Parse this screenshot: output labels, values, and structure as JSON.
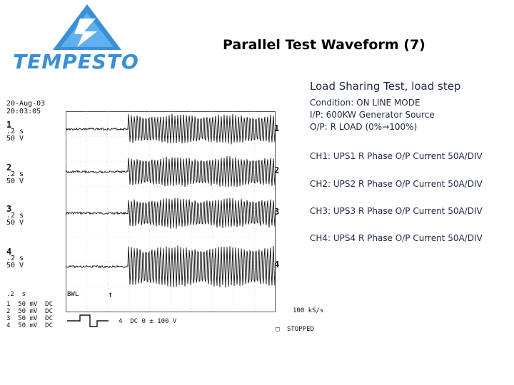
{
  "logo": {
    "text": "TEMPESTO"
  },
  "title": "Parallel Test Waveform (7)",
  "scope": {
    "date": "20-Aug-03",
    "time": "20:03:05",
    "channels": [
      {
        "num": "1",
        "time_div": ".2 s",
        "volt_div": "50 V",
        "marker": "1"
      },
      {
        "num": "2",
        "time_div": ".2 s",
        "volt_div": "50 V",
        "marker": "2"
      },
      {
        "num": "3",
        "time_div": ".2 s",
        "volt_div": "50 V",
        "marker": "3"
      },
      {
        "num": "4",
        "time_div": ".2 s",
        "volt_div": "50 V",
        "marker": "4"
      }
    ],
    "timebase": ".2  s",
    "bwl": "BWL",
    "channel_settings": [
      "1  50 mV  DC",
      "2  50 mV  DC",
      "3  50 mV  DC",
      "4  50 mV  DC"
    ],
    "trigger": "4  DC 0 ± 100 V",
    "sample_rate": "100 kS/s",
    "status": "STOPPED",
    "trigger_arrow": "↑"
  },
  "notes": {
    "heading": "Load Sharing Test, load step",
    "condition": "Condition: ON LINE MODE",
    "input": "I/P: 600KW Generator Source",
    "output": "O/P: R LOAD (0%→100%)",
    "ch1": "CH1: UPS1 R Phase O/P Current  50A/DIV",
    "ch2": "CH2: UPS2 R Phase O/P Current 50A/DIV",
    "ch3": "CH3: UPS3 R Phase O/P Current 50A/DIV",
    "ch4": "CH4: UPS4 R Phase O/P Current 50A/DIV"
  }
}
